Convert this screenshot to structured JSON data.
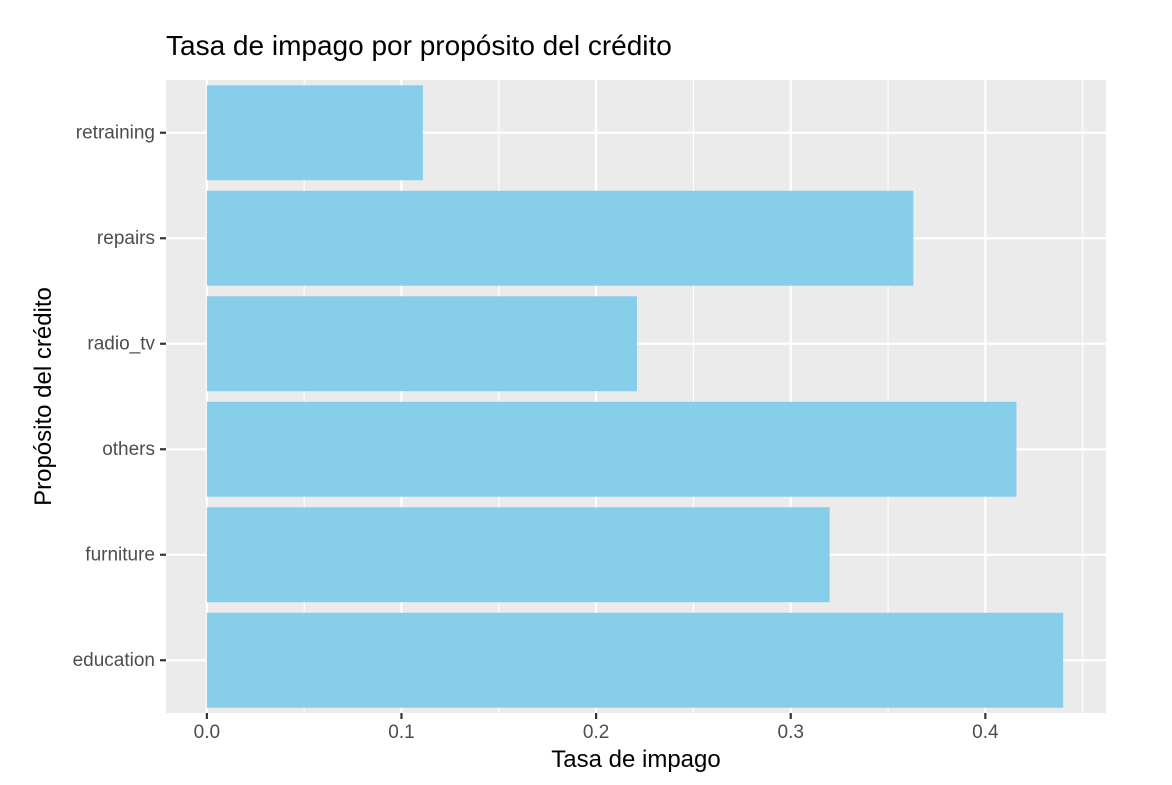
{
  "chart_data": {
    "type": "bar",
    "orientation": "horizontal",
    "title": "Tasa de impago por propósito del crédito",
    "xlabel": "Tasa de impago",
    "ylabel": "Propósito del crédito",
    "categories": [
      "education",
      "furniture",
      "others",
      "radio_tv",
      "repairs",
      "retraining"
    ],
    "values": [
      0.44,
      0.32,
      0.416,
      0.221,
      0.363,
      0.111
    ],
    "xlim": [
      -0.021,
      0.462
    ],
    "xticks": [
      0.0,
      0.1,
      0.2,
      0.3,
      0.4
    ],
    "xtick_labels": [
      "0.0",
      "0.1",
      "0.2",
      "0.3",
      "0.4"
    ],
    "grid": true,
    "bar_color": "#87CEEB",
    "panel_color": "#EBEBEB",
    "grid_color": "#FFFFFF"
  }
}
